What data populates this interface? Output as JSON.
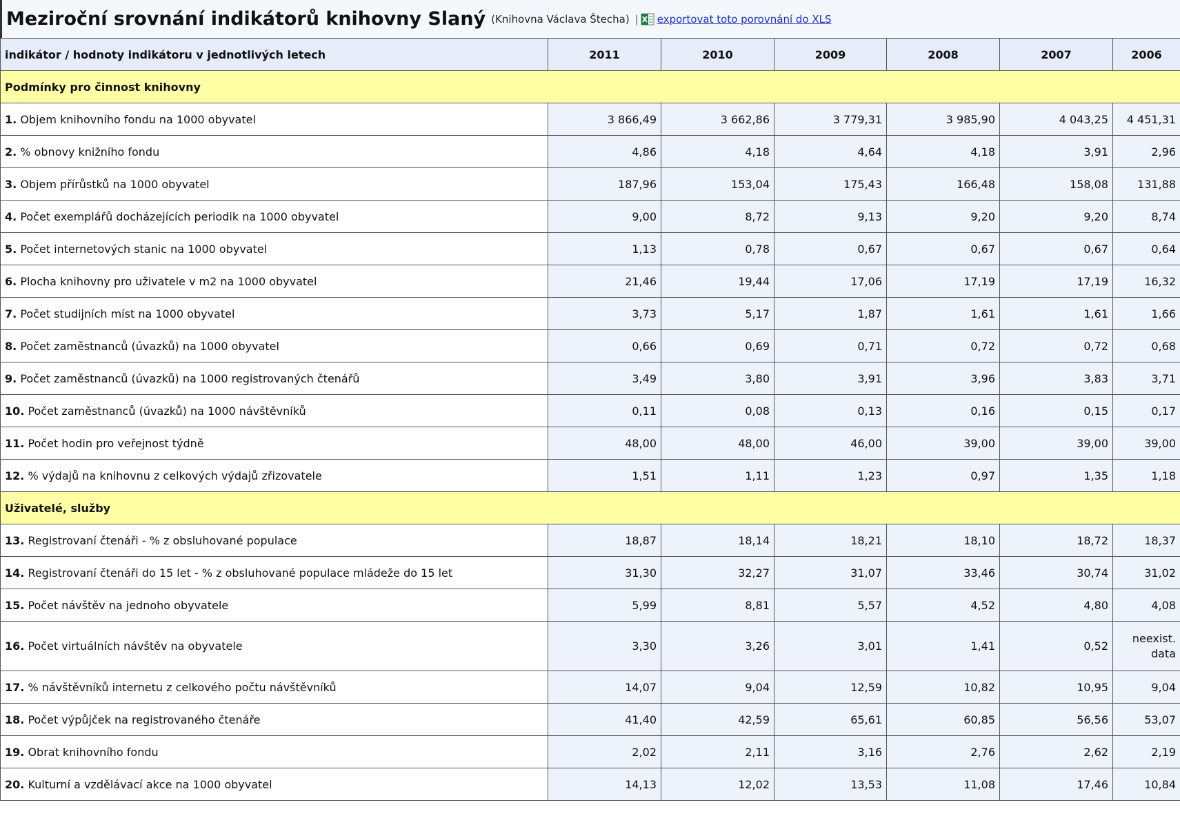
{
  "header": {
    "title": "Meziroční srovnání indikátorů knihovny Slaný",
    "subtitle": "(Knihovna Václava Štecha)",
    "separator": "|",
    "export_link": "exportovat toto porovnání do XLS"
  },
  "table": {
    "header_label": "indikátor / hodnoty indikátoru v jednotlivých letech",
    "years": [
      "2011",
      "2010",
      "2009",
      "2008",
      "2007",
      "2006"
    ],
    "sections": [
      {
        "title": "Podmínky pro činnost knihovny",
        "rows": [
          {
            "number": "1.",
            "label": "Objem knihovního fondu na 1000 obyvatel",
            "values": [
              "3 866,49",
              "3 662,86",
              "3 779,31",
              "3 985,90",
              "4 043,25",
              "4 451,31"
            ]
          },
          {
            "number": "2.",
            "label": "% obnovy knižního fondu",
            "values": [
              "4,86",
              "4,18",
              "4,64",
              "4,18",
              "3,91",
              "2,96"
            ]
          },
          {
            "number": "3.",
            "label": "Objem přírůstků na 1000 obyvatel",
            "values": [
              "187,96",
              "153,04",
              "175,43",
              "166,48",
              "158,08",
              "131,88"
            ]
          },
          {
            "number": "4.",
            "label": "Počet exemplářů docházejících periodik na 1000 obyvatel",
            "values": [
              "9,00",
              "8,72",
              "9,13",
              "9,20",
              "9,20",
              "8,74"
            ]
          },
          {
            "number": "5.",
            "label": "Počet internetových stanic na 1000 obyvatel",
            "values": [
              "1,13",
              "0,78",
              "0,67",
              "0,67",
              "0,67",
              "0,64"
            ]
          },
          {
            "number": "6.",
            "label": "Plocha knihovny pro uživatele v m2 na 1000 obyvatel",
            "values": [
              "21,46",
              "19,44",
              "17,06",
              "17,19",
              "17,19",
              "16,32"
            ]
          },
          {
            "number": "7.",
            "label": "Počet studijních míst na 1000 obyvatel",
            "values": [
              "3,73",
              "5,17",
              "1,87",
              "1,61",
              "1,61",
              "1,66"
            ]
          },
          {
            "number": "8.",
            "label": "Počet zaměstnanců (úvazků) na 1000 obyvatel",
            "values": [
              "0,66",
              "0,69",
              "0,71",
              "0,72",
              "0,72",
              "0,68"
            ]
          },
          {
            "number": "9.",
            "label": "Počet zaměstnanců (úvazků) na 1000 registrovaných čtenářů",
            "values": [
              "3,49",
              "3,80",
              "3,91",
              "3,96",
              "3,83",
              "3,71"
            ]
          },
          {
            "number": "10.",
            "label": "Počet zaměstnanců (úvazků) na 1000 návštěvníků",
            "values": [
              "0,11",
              "0,08",
              "0,13",
              "0,16",
              "0,15",
              "0,17"
            ]
          },
          {
            "number": "11.",
            "label": "Počet hodin pro veřejnost týdně",
            "values": [
              "48,00",
              "48,00",
              "46,00",
              "39,00",
              "39,00",
              "39,00"
            ]
          },
          {
            "number": "12.",
            "label": "% výdajů na knihovnu z celkových výdajů zřizovatele",
            "values": [
              "1,51",
              "1,11",
              "1,23",
              "0,97",
              "1,35",
              "1,18"
            ]
          }
        ]
      },
      {
        "title": "Uživatelé, služby",
        "rows": [
          {
            "number": "13.",
            "label": "Registrovaní čtenáři - % z obsluhované populace",
            "values": [
              "18,87",
              "18,14",
              "18,21",
              "18,10",
              "18,72",
              "18,37"
            ]
          },
          {
            "number": "14.",
            "label": "Registrovaní čtenáři do 15 let - % z obsluhované populace mládeže do 15 let",
            "values": [
              "31,30",
              "32,27",
              "31,07",
              "33,46",
              "30,74",
              "31,02"
            ]
          },
          {
            "number": "15.",
            "label": "Počet návštěv na jednoho obyvatele",
            "values": [
              "5,99",
              "8,81",
              "5,57",
              "4,52",
              "4,80",
              "4,08"
            ]
          },
          {
            "number": "16.",
            "label": "Počet virtuálních návštěv na obyvatele",
            "values": [
              "3,30",
              "3,26",
              "3,01",
              "1,41",
              "0,52",
              "neexist. data"
            ]
          },
          {
            "number": "17.",
            "label": "% návštěvníků internetu z celkového počtu návštěvníků",
            "values": [
              "14,07",
              "9,04",
              "12,59",
              "10,82",
              "10,95",
              "9,04"
            ]
          },
          {
            "number": "18.",
            "label": "Počet výpůjček na registrovaného čtenáře",
            "values": [
              "41,40",
              "42,59",
              "65,61",
              "60,85",
              "56,56",
              "53,07"
            ]
          },
          {
            "number": "19.",
            "label": "Obrat knihovního fondu",
            "values": [
              "2,02",
              "2,11",
              "3,16",
              "2,76",
              "2,62",
              "2,19"
            ]
          },
          {
            "number": "20.",
            "label": "Kulturní a vzdělávací akce na 1000 obyvatel",
            "values": [
              "14,13",
              "12,02",
              "13,53",
              "11,08",
              "17,46",
              "10,84"
            ]
          }
        ]
      }
    ]
  }
}
